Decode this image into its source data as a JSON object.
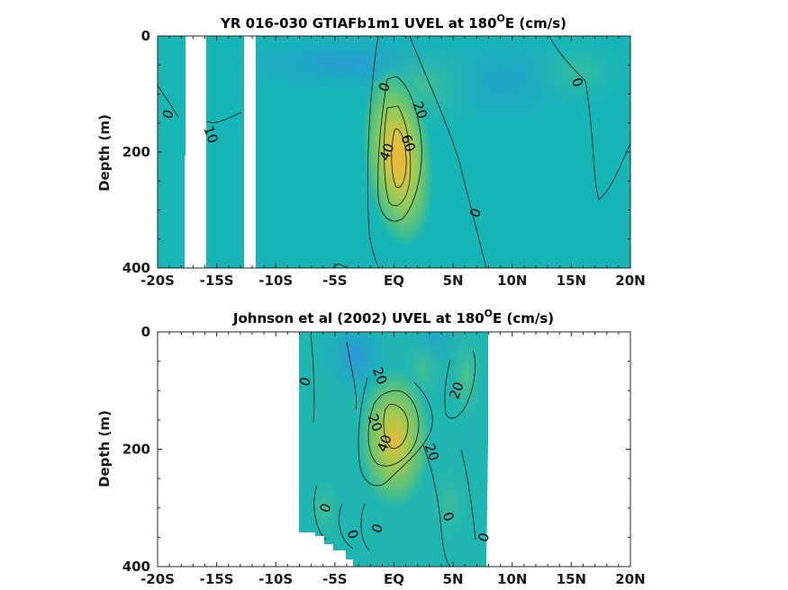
{
  "chart_data": [
    {
      "type": "heatmap",
      "title": "YR 016-030 GTIAFb1m1 UVEL at 180",
      "title_sup": "O",
      "title_tail": "E (cm/s)",
      "ylabel": "Depth (m)",
      "xticks": [
        "-20S",
        "-15S",
        "-10S",
        "-5S",
        "EQ",
        "5N",
        "10N",
        "15N",
        "20N"
      ],
      "xtick_values": [
        -20,
        -15,
        -10,
        -5,
        0,
        5,
        10,
        15,
        20
      ],
      "yticks": [
        "0",
        "200",
        "400"
      ],
      "ytick_values": [
        0,
        200,
        400
      ],
      "xlim": [
        -20,
        20
      ],
      "ylim": [
        0,
        400
      ],
      "y_reversed": true,
      "contour_labels": [
        {
          "text": "0",
          "lat": -19.1,
          "depth": 135
        },
        {
          "text": "10",
          "lat": -15.5,
          "depth": 170
        },
        {
          "text": "0",
          "lat": -0.8,
          "depth": 88
        },
        {
          "text": "20",
          "lat": 2.2,
          "depth": 128
        },
        {
          "text": "40",
          "lat": -0.6,
          "depth": 200
        },
        {
          "text": "60",
          "lat": 1.2,
          "depth": 185
        },
        {
          "text": "0",
          "lat": 6.9,
          "depth": 305
        },
        {
          "text": "0",
          "lat": 15.5,
          "depth": 80
        }
      ],
      "core": {
        "lat": 0.5,
        "depth": 175,
        "max_value": 70
      }
    },
    {
      "type": "heatmap",
      "title": "Johnson et al (2002) UVEL at 180",
      "title_sup": "O",
      "title_tail": "E (cm/s)",
      "ylabel": "Depth (m)",
      "xticks": [
        "-20S",
        "-15S",
        "-10S",
        "-5S",
        "EQ",
        "5N",
        "10N",
        "15N",
        "20N"
      ],
      "xtick_values": [
        -20,
        -15,
        -10,
        -5,
        0,
        5,
        10,
        15,
        20
      ],
      "yticks": [
        "0",
        "200",
        "400"
      ],
      "ytick_values": [
        0,
        200,
        400
      ],
      "xlim": [
        -20,
        20
      ],
      "ylim": [
        0,
        400
      ],
      "y_reversed": true,
      "data_extent_lat": [
        -8,
        8
      ],
      "contour_labels": [
        {
          "text": "0",
          "lat": -7.5,
          "depth": 85
        },
        {
          "text": "20",
          "lat": -1.2,
          "depth": 75
        },
        {
          "text": "20",
          "lat": 5.3,
          "depth": 100
        },
        {
          "text": "20",
          "lat": -1.6,
          "depth": 155
        },
        {
          "text": "40",
          "lat": -0.8,
          "depth": 190
        },
        {
          "text": "20",
          "lat": 3.2,
          "depth": 205
        },
        {
          "text": "0",
          "lat": -5.8,
          "depth": 300
        },
        {
          "text": "0",
          "lat": -3.5,
          "depth": 345
        },
        {
          "text": "0",
          "lat": -1.4,
          "depth": 335
        },
        {
          "text": "0",
          "lat": 4.6,
          "depth": 315
        },
        {
          "text": "0",
          "lat": 7.6,
          "depth": 350
        }
      ],
      "core": {
        "lat": 0.3,
        "depth": 170,
        "max_value": 55
      }
    }
  ]
}
